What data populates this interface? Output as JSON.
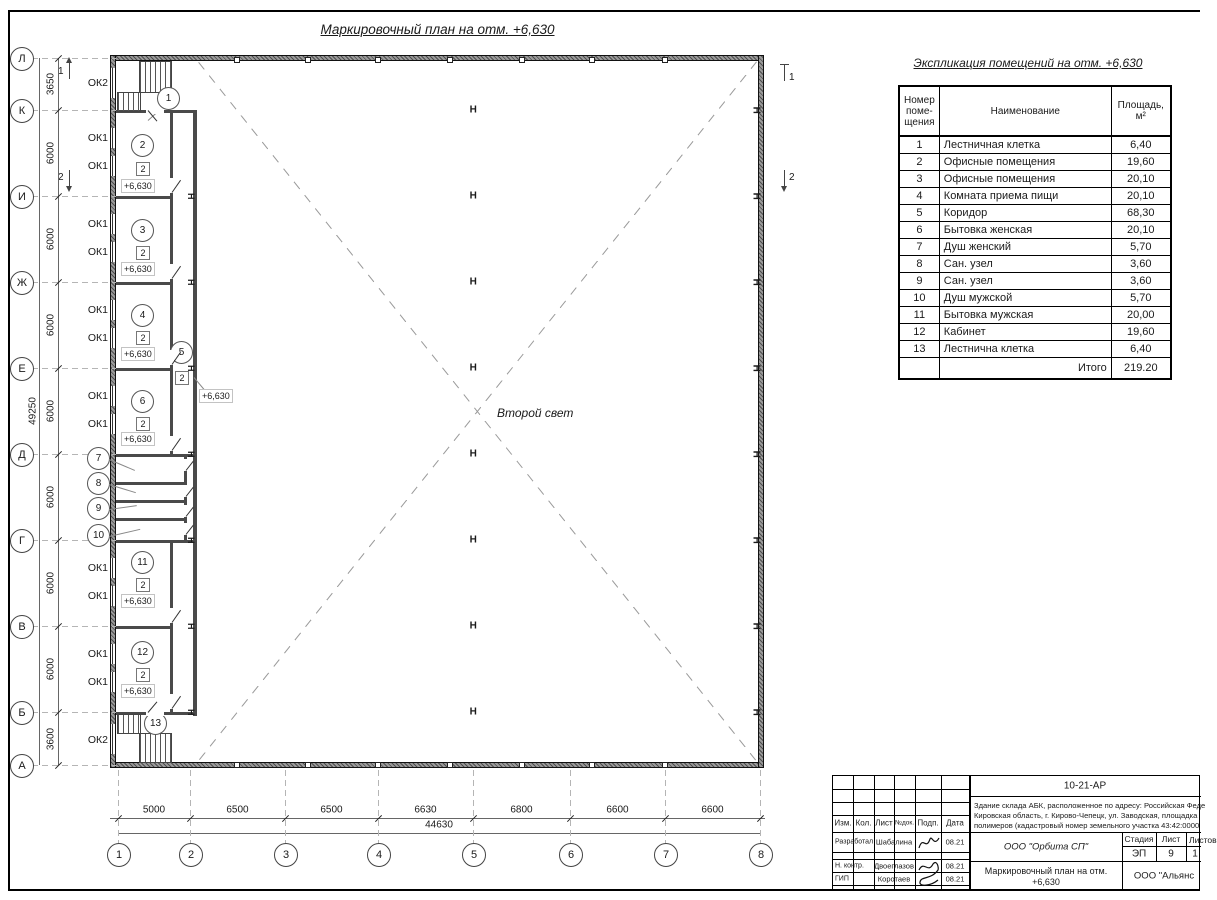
{
  "plan": {
    "title": "Маркировочный план на отм. +6,630",
    "second_light": "Второй свет",
    "level_mark": "+6,630",
    "door_badge": "2",
    "column_mark": "Н",
    "row_axes": [
      "Л",
      "К",
      "И",
      "Ж",
      "Е",
      "Д",
      "Г",
      "В",
      "Б",
      "А"
    ],
    "col_axes": [
      "1",
      "2",
      "3",
      "4",
      "5",
      "6",
      "7",
      "8"
    ],
    "dims_left": [
      "3650",
      "6000",
      "6000",
      "6000",
      "6000",
      "6000",
      "6000",
      "6000",
      "3600"
    ],
    "dim_left_total": "49250",
    "dims_bottom": [
      "5000",
      "6500",
      "6500",
      "6630",
      "6800",
      "6600",
      "6600"
    ],
    "dim_bottom_total": "44630",
    "window_marks": [
      "ОК2",
      "ОК1",
      "ОК1",
      "ОК1",
      "ОК1",
      "ОК1",
      "ОК1",
      "ОК1",
      "ОК1",
      "ОК1",
      "ОК1",
      "ОК1",
      "ОК1",
      "ОК2"
    ],
    "room_numbers": [
      "1",
      "2",
      "3",
      "4",
      "5",
      "6",
      "7",
      "8",
      "9",
      "10",
      "11",
      "12",
      "13"
    ],
    "section_marks": [
      "1",
      "2"
    ]
  },
  "explication": {
    "title": "Экспликация помещений на отм. +6,630",
    "headers": {
      "number": "Номер поме- щения",
      "name": "Наименование",
      "area": "Площадь, м²"
    },
    "rows": [
      [
        "1",
        "Лестничная клетка",
        "6,40"
      ],
      [
        "2",
        "Офисные помещения",
        "19,60"
      ],
      [
        "3",
        "Офисные помещения",
        "20,10"
      ],
      [
        "4",
        "Комната приема пищи",
        "20,10"
      ],
      [
        "5",
        "Коридор",
        "68,30"
      ],
      [
        "6",
        "Бытовка женская",
        "20,10"
      ],
      [
        "7",
        "Душ женский",
        "5,70"
      ],
      [
        "8",
        "Сан. узел",
        "3,60"
      ],
      [
        "9",
        "Сан. узел",
        "3,60"
      ],
      [
        "10",
        "Душ мужской",
        "5,70"
      ],
      [
        "11",
        "Бытовка мужская",
        "20,00"
      ],
      [
        "12",
        "Кабинет",
        "19,60"
      ],
      [
        "13",
        "Лестнична клетка",
        "6,40"
      ]
    ],
    "total_label": "Итого",
    "total_value": "219.20"
  },
  "stamp": {
    "doc_number": "10-21-АР",
    "description_lines": [
      "Здание склада АБК, расположенное по адресу: Российская Феде",
      "Кировская область, г. Кирово-Чепецк, ул. Заводская, площадка",
      "полимеров (кадастровый номер земельного участка 43:42:0000"
    ],
    "org": "ООО \"Орбита СП\"",
    "org2": "ООО \"Альянс",
    "doc_title_line1": "Маркировочный план на отм.",
    "doc_title_line2": "+6,630",
    "stage_headers": [
      "Стадия",
      "Лист",
      "Листов"
    ],
    "stage": "ЭП",
    "sheet": "9",
    "sheets": "1",
    "rev_headers": [
      "Изм.",
      "Кол.",
      "Лист",
      "№док.",
      "Подп.",
      "Дата"
    ],
    "signers": [
      {
        "role": "Разработал",
        "name": "Шабалина",
        "date": "08.21"
      },
      {
        "role": "Н. контр.",
        "name": "Двоеглазов",
        "date": "08.21"
      },
      {
        "role": "ГИП",
        "name": "Коротаев",
        "date": "08.21"
      }
    ]
  }
}
